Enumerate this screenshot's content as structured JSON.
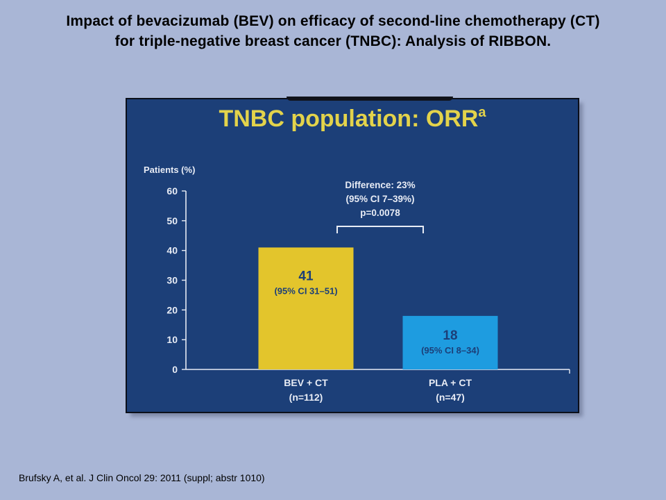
{
  "slide": {
    "title_line1": "Impact of bevacizumab (BEV) on efficacy of second-line chemotherapy (CT)",
    "title_line2": "for triple-negative breast cancer (TNBC): Analysis of RIBBON.",
    "footnote": "Brufsky A, et al. J Clin Oncol 29: 2011 (suppl; abstr 1010)"
  },
  "chart_data": {
    "type": "bar",
    "title": "TNBC population: ORR",
    "title_superscript": "a",
    "ylabel": "Patients (%)",
    "ylim": [
      0,
      60
    ],
    "yticks": [
      0,
      10,
      20,
      30,
      40,
      50,
      60
    ],
    "categories": [
      "BEV + CT",
      "PLA + CT"
    ],
    "category_sublabels": [
      "(n=112)",
      "(n=47)"
    ],
    "values": [
      41,
      18
    ],
    "value_labels": [
      "41",
      "18"
    ],
    "ci_labels": [
      "(95% CI 31–51)",
      "(95% CI 8–34)"
    ],
    "bar_colors": [
      "#e3c52c",
      "#1e9ce0"
    ],
    "annotation": {
      "lines": [
        "Difference: 23%",
        "(95% CI 7–39%)",
        "p=0.0078"
      ]
    },
    "grid": false,
    "legend": "none"
  }
}
